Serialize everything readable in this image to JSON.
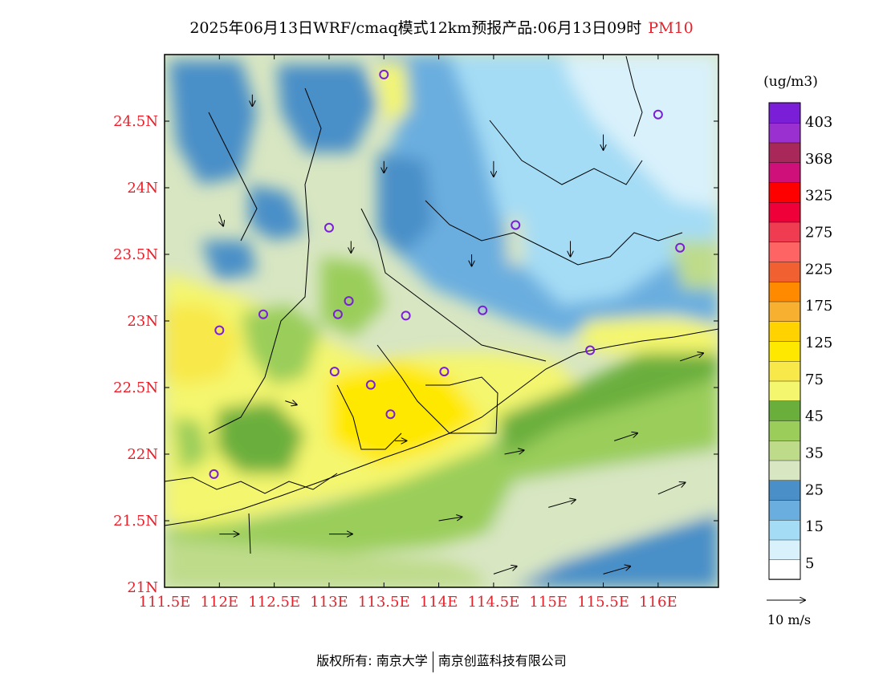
{
  "title": {
    "main": "2025年06月13日WRF/cmaq模式12km预报产品:06月13日09时",
    "pollutant": "PM10"
  },
  "axes": {
    "lat_labels": [
      "24.5N",
      "24N",
      "23.5N",
      "23N",
      "22.5N",
      "22N",
      "21.5N",
      "21N"
    ],
    "lon_labels": [
      "111.5E",
      "112E",
      "112.5E",
      "113E",
      "113.5E",
      "114E",
      "114.5E",
      "115E",
      "115.5E",
      "116E"
    ],
    "label_color": "#e8202a"
  },
  "colorbar": {
    "unit": "(ug/m3)",
    "labels": [
      "403",
      "368",
      "325",
      "275",
      "225",
      "175",
      "125",
      "75",
      "45",
      "35",
      "25",
      "15",
      "5"
    ],
    "colors_bottom_to_top": [
      "#ffffff",
      "#d9f1fb",
      "#a4dcf5",
      "#6aaedf",
      "#4a8fc8",
      "#d8e6c2",
      "#bedb8a",
      "#9acd5a",
      "#6aaf3c",
      "#f4f66e",
      "#f8e84a",
      "#ffe800",
      "#ffd200",
      "#f8b030",
      "#ff8a00",
      "#f06030",
      "#ff6464",
      "#f03c50",
      "#f00038",
      "#ff0000",
      "#d0107a",
      "#a8285a",
      "#9a30d0",
      "#7a1ed8"
    ]
  },
  "wind_legend": {
    "label": "10 m/s"
  },
  "footer": {
    "left": "版权所有: 南京大学",
    "right": "南京创蓝科技有限公司"
  },
  "chart_data": {
    "type": "heatmap",
    "title": "2025年06月13日WRF/cmaq模式12km预报产品:06月13日09时 PM10",
    "variable": "PM10",
    "unit": "ug/m3",
    "lon_range": [
      111.5,
      116.55
    ],
    "lat_range": [
      21.0,
      25.0
    ],
    "color_levels": [
      5,
      15,
      25,
      35,
      45,
      75,
      125,
      175,
      225,
      275,
      325,
      368,
      403
    ],
    "regions": [
      {
        "name": "coastal-high",
        "lon": 113.7,
        "lat": 22.3,
        "approx_value": 110
      },
      {
        "name": "west-yellow",
        "lon": 112.2,
        "lat": 22.8,
        "approx_value": 90
      },
      {
        "name": "northeast-clean",
        "lon": 115.8,
        "lat": 24.5,
        "approx_value": 10
      },
      {
        "name": "southeast-sea-clean",
        "lon": 115.8,
        "lat": 21.3,
        "approx_value": 20
      },
      {
        "name": "north-central-blue",
        "lon": 114.0,
        "lat": 23.8,
        "approx_value": 20
      }
    ],
    "stations": [
      {
        "lon": 113.5,
        "lat": 24.85
      },
      {
        "lon": 116.0,
        "lat": 24.55
      },
      {
        "lon": 113.0,
        "lat": 23.7
      },
      {
        "lon": 114.7,
        "lat": 23.72
      },
      {
        "lon": 116.2,
        "lat": 23.55
      },
      {
        "lon": 112.4,
        "lat": 23.05
      },
      {
        "lon": 113.08,
        "lat": 23.05
      },
      {
        "lon": 113.18,
        "lat": 23.15
      },
      {
        "lon": 113.7,
        "lat": 23.04
      },
      {
        "lon": 114.4,
        "lat": 23.08
      },
      {
        "lon": 112.0,
        "lat": 22.93
      },
      {
        "lon": 115.38,
        "lat": 22.78
      },
      {
        "lon": 113.05,
        "lat": 22.62
      },
      {
        "lon": 113.38,
        "lat": 22.52
      },
      {
        "lon": 114.05,
        "lat": 22.62
      },
      {
        "lon": 113.56,
        "lat": 22.3
      },
      {
        "lon": 111.95,
        "lat": 21.85
      }
    ],
    "winds": [
      {
        "lon": 112.3,
        "lat": 24.7,
        "u": 0,
        "v": -3
      },
      {
        "lon": 113.5,
        "lat": 24.2,
        "u": 0,
        "v": -3
      },
      {
        "lon": 114.5,
        "lat": 24.2,
        "u": 0,
        "v": -4
      },
      {
        "lon": 115.5,
        "lat": 24.4,
        "u": 0,
        "v": -4
      },
      {
        "lon": 112.0,
        "lat": 23.8,
        "u": 1,
        "v": -3
      },
      {
        "lon": 113.2,
        "lat": 23.6,
        "u": 0,
        "v": -3
      },
      {
        "lon": 114.3,
        "lat": 23.5,
        "u": 0,
        "v": -3
      },
      {
        "lon": 115.2,
        "lat": 23.6,
        "u": 0,
        "v": -4
      },
      {
        "lon": 112.6,
        "lat": 22.4,
        "u": 3,
        "v": -1
      },
      {
        "lon": 113.6,
        "lat": 22.1,
        "u": 3,
        "v": 0
      },
      {
        "lon": 114.6,
        "lat": 22.0,
        "u": 5,
        "v": 1
      },
      {
        "lon": 115.6,
        "lat": 22.1,
        "u": 6,
        "v": 2
      },
      {
        "lon": 112.0,
        "lat": 21.4,
        "u": 5,
        "v": 0
      },
      {
        "lon": 113.0,
        "lat": 21.4,
        "u": 6,
        "v": 0
      },
      {
        "lon": 114.0,
        "lat": 21.5,
        "u": 6,
        "v": 1
      },
      {
        "lon": 115.0,
        "lat": 21.6,
        "u": 7,
        "v": 2
      },
      {
        "lon": 116.0,
        "lat": 21.7,
        "u": 7,
        "v": 3
      },
      {
        "lon": 114.5,
        "lat": 21.1,
        "u": 6,
        "v": 2
      },
      {
        "lon": 115.5,
        "lat": 21.1,
        "u": 7,
        "v": 2
      },
      {
        "lon": 116.2,
        "lat": 22.7,
        "u": 6,
        "v": 2
      }
    ]
  }
}
